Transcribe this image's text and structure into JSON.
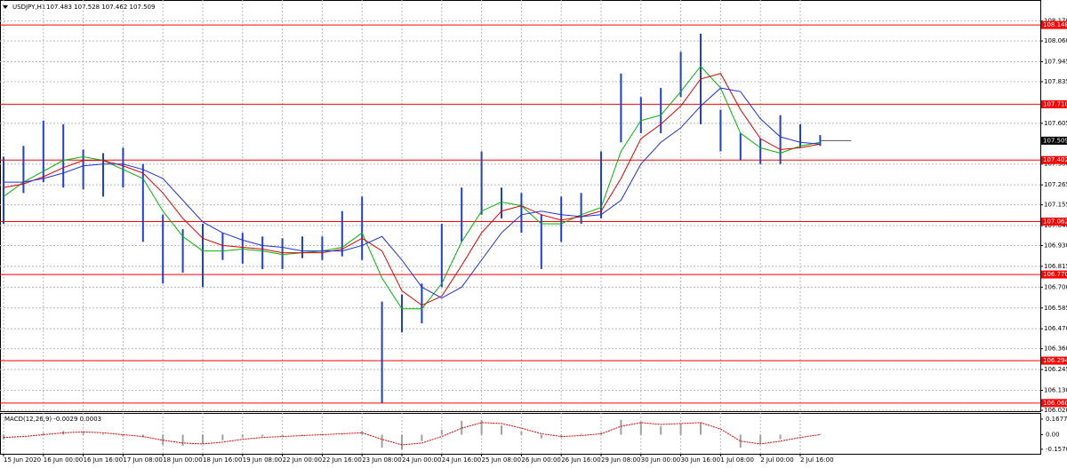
{
  "chart_data": {
    "type": "ohlc",
    "title": "USDJPY,H1",
    "subtitle": "107.483 107.528 107.462 107.509",
    "categories": [
      "15 Jun 2020",
      null,
      "16 Jun 00:00",
      null,
      "16 Jun 16:00",
      null,
      "17 Jun 08:00",
      null,
      "18 Jun 00:00",
      null,
      "18 Jun 16:00",
      null,
      "19 Jun 08:00",
      null,
      "22 Jun 00:00",
      null,
      "22 Jun 16:00",
      null,
      "23 Jun 08:00",
      null,
      "24 Jun 00:00",
      null,
      "24 Jun 16:00",
      null,
      "25 Jun 08:00",
      null,
      "26 Jun 00:00",
      null,
      "26 Jun 16:00",
      null,
      "29 Jun 08:00",
      null,
      "30 Jun 00:00",
      null,
      "30 Jun 16:00",
      null,
      "1 Jul 08:00",
      null,
      "2 Jul 00:00",
      null,
      "2 Jul 16:00",
      null
    ],
    "low": [
      107.05,
      107.22,
      107.28,
      107.25,
      107.24,
      107.2,
      107.25,
      106.95,
      106.72,
      106.78,
      106.7,
      106.85,
      106.83,
      106.8,
      106.8,
      106.86,
      106.85,
      106.87,
      106.85,
      106.06,
      106.45,
      106.5,
      106.7,
      106.95,
      107.1,
      107.08,
      107.0,
      106.8,
      106.95,
      107.05,
      107.08,
      107.5,
      107.55,
      107.55,
      107.75,
      107.6,
      107.45,
      107.4,
      107.38,
      107.38,
      107.47,
      107.48
    ],
    "high": [
      107.42,
      107.48,
      107.62,
      107.6,
      107.46,
      107.44,
      107.47,
      107.38,
      107.1,
      107.02,
      107.05,
      107.0,
      107.0,
      106.98,
      106.97,
      106.98,
      106.98,
      107.12,
      107.2,
      106.62,
      106.66,
      106.72,
      107.05,
      107.25,
      107.45,
      107.25,
      107.22,
      107.1,
      107.2,
      107.22,
      107.45,
      107.88,
      107.75,
      107.8,
      108.0,
      108.1,
      107.68,
      107.55,
      107.52,
      107.65,
      107.6,
      107.54
    ],
    "bar_color": "#1f3fd6",
    "ma": [
      {
        "color": "#00b400",
        "values": [
          107.2,
          107.28,
          107.34,
          107.4,
          107.42,
          107.4,
          107.35,
          107.3,
          107.12,
          106.98,
          106.9,
          106.9,
          106.91,
          106.9,
          106.88,
          106.89,
          106.9,
          106.92,
          107.0,
          106.75,
          106.58,
          106.58,
          106.72,
          106.95,
          107.12,
          107.17,
          107.15,
          107.05,
          107.05,
          107.1,
          107.14,
          107.45,
          107.62,
          107.65,
          107.78,
          107.92,
          107.8,
          107.55,
          107.47,
          107.44,
          107.48,
          107.5
        ]
      },
      {
        "color": "#e00000",
        "values": [
          107.25,
          107.27,
          107.31,
          107.36,
          107.4,
          107.4,
          107.37,
          107.33,
          107.22,
          107.08,
          106.97,
          106.93,
          106.92,
          106.91,
          106.89,
          106.89,
          106.89,
          106.91,
          106.97,
          106.9,
          106.68,
          106.6,
          106.65,
          106.82,
          107.0,
          107.12,
          107.15,
          107.1,
          107.07,
          107.09,
          107.12,
          107.3,
          107.52,
          107.6,
          107.7,
          107.85,
          107.88,
          107.68,
          107.52,
          107.46,
          107.47,
          107.49
        ]
      },
      {
        "color": "#2030e0",
        "values": [
          107.28,
          107.28,
          107.3,
          107.33,
          107.37,
          107.38,
          107.38,
          107.35,
          107.3,
          107.18,
          107.06,
          107.0,
          106.96,
          106.93,
          106.92,
          106.9,
          106.9,
          106.9,
          106.93,
          106.98,
          106.85,
          106.7,
          106.64,
          106.7,
          106.85,
          107.0,
          107.1,
          107.12,
          107.1,
          107.09,
          107.1,
          107.18,
          107.38,
          107.5,
          107.58,
          107.7,
          107.8,
          107.78,
          107.63,
          107.53,
          107.5,
          107.49
        ]
      }
    ],
    "levels": [
      108.148,
      107.71,
      107.402,
      107.062,
      106.77,
      106.294,
      106.06
    ],
    "level_labels": [
      "108.148",
      "107.710",
      "107.402",
      "107.062",
      "106.770",
      "106.294",
      "106.060"
    ],
    "level_color": "#ff0000",
    "current": 107.509,
    "ylim": [
      106.015,
      108.286
    ],
    "yticks": [
      {
        "value": 108.17,
        "label": "108.170"
      },
      {
        "value": 108.06,
        "label": "108.060"
      },
      107.945,
      107.835,
      107.605,
      {
        "value": 107.38,
        "label": "107.380"
      },
      107.265,
      107.155,
      {
        "value": 107.04,
        "label": "107.040"
      },
      {
        "value": 106.93,
        "label": "106.930"
      },
      106.815,
      {
        "value": 106.7,
        "label": "106.700"
      },
      106.585,
      {
        "value": 106.47,
        "label": "106.470"
      },
      {
        "value": 106.36,
        "label": "106.360"
      },
      106.245,
      {
        "value": 106.13,
        "label": "106.130"
      },
      {
        "value": 106.02,
        "label": "106.020"
      }
    ],
    "grid": true,
    "macd": {
      "title": "MACD(12,26,9) -0.0029 0.0003",
      "histogram": [
        -0.05,
        0,
        0.02,
        0.04,
        0.03,
        0.01,
        -0.02,
        -0.03,
        -0.11,
        -0.12,
        -0.1,
        -0.06,
        -0.03,
        -0.02,
        -0.02,
        -0.01,
        0,
        0.01,
        0.04,
        -0.14,
        -0.16,
        -0.07,
        0.05,
        0.15,
        0.16,
        0.1,
        0.03,
        -0.04,
        -0.03,
        0.01,
        0.02,
        0.16,
        0.14,
        0.09,
        0.12,
        0.13,
        0,
        -0.14,
        -0.1,
        -0.05,
        -0.01,
        0.01
      ],
      "signal": [
        -0.03,
        -0.02,
        0,
        0.02,
        0.03,
        0.02,
        0,
        -0.02,
        -0.06,
        -0.09,
        -0.1,
        -0.08,
        -0.05,
        -0.03,
        -0.02,
        -0.01,
        0,
        0.01,
        0.02,
        -0.05,
        -0.11,
        -0.09,
        -0.02,
        0.07,
        0.13,
        0.12,
        0.07,
        0.01,
        -0.02,
        -0.01,
        0.01,
        0.09,
        0.13,
        0.11,
        0.12,
        0.13,
        0.06,
        -0.07,
        -0.1,
        -0.07,
        -0.03,
        0
      ],
      "hist_color": "#a0a0a0",
      "signal_color": "#e00000",
      "ylim": [
        -0.206,
        0.234
      ],
      "yticks": [
        0.1677,
        {
          "value": 0,
          "label": "0.00"
        },
        {
          "value": -0.157,
          "label": "-0.1570"
        }
      ]
    }
  }
}
